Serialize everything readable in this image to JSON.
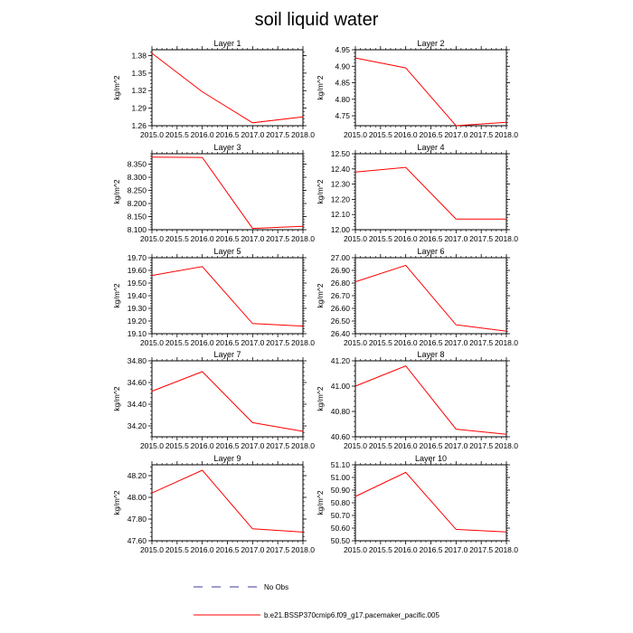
{
  "title": "soil liquid water",
  "legend": {
    "obs_label": "No Obs",
    "obs_color": "#3a3aa0",
    "model_label": "b.e21.BSSP370cmip6.f09_g17.pacemaker_pacific.005",
    "model_color": "#ff0000"
  },
  "chart_data": [
    {
      "type": "line",
      "title": "Layer 1",
      "ylabel": "kg/m^2",
      "x": [
        2015,
        2016,
        2017,
        2018
      ],
      "xlim": [
        2015,
        2018
      ],
      "xticks": [
        "2015.0",
        "2015.5",
        "2016.0",
        "2016.5",
        "2017.0",
        "2017.5",
        "2018.0"
      ],
      "ylim": [
        1.26,
        1.39
      ],
      "yticks": [
        "1.38",
        "1.35",
        "1.32",
        "1.29",
        "1.26"
      ],
      "ytick_values": [
        1.38,
        1.35,
        1.32,
        1.29,
        1.26
      ],
      "series": [
        {
          "name": "b.e21.BSSP370cmip6.f09_g17.pacemaker_pacific.005",
          "values": [
            1.384,
            1.318,
            1.265,
            1.275
          ]
        }
      ]
    },
    {
      "type": "line",
      "title": "Layer 2",
      "ylabel": "kg/m^2",
      "x": [
        2015,
        2016,
        2017,
        2018
      ],
      "xlim": [
        2015,
        2018
      ],
      "xticks": [
        "2015.0",
        "2015.5",
        "2016.0",
        "2016.5",
        "2017.0",
        "2017.5",
        "2018.0"
      ],
      "ylim": [
        4.72,
        4.95
      ],
      "yticks": [
        "4.95",
        "4.90",
        "4.85",
        "4.80",
        "4.75"
      ],
      "ytick_values": [
        4.95,
        4.9,
        4.85,
        4.8,
        4.75
      ],
      "series": [
        {
          "name": "b.e21.BSSP370cmip6.f09_g17.pacemaker_pacific.005",
          "values": [
            4.925,
            4.895,
            4.72,
            4.73
          ]
        }
      ]
    },
    {
      "type": "line",
      "title": "Layer 3",
      "ylabel": "kg/m^2",
      "x": [
        2015,
        2016,
        2017,
        2018
      ],
      "xlim": [
        2015,
        2018
      ],
      "xticks": [
        "2015.0",
        "2015.5",
        "2016.0",
        "2016.5",
        "2017.0",
        "2017.5",
        "2018.0"
      ],
      "ylim": [
        8.1,
        8.39
      ],
      "yticks": [
        "8.350",
        "8.300",
        "8.250",
        "8.200",
        "8.150",
        "8.100"
      ],
      "ytick_values": [
        8.35,
        8.3,
        8.25,
        8.2,
        8.15,
        8.1
      ],
      "series": [
        {
          "name": "b.e21.BSSP370cmip6.f09_g17.pacemaker_pacific.005",
          "values": [
            8.377,
            8.376,
            8.105,
            8.113
          ]
        }
      ]
    },
    {
      "type": "line",
      "title": "Layer 4",
      "ylabel": "kg/m^2",
      "x": [
        2015,
        2016,
        2017,
        2018
      ],
      "xlim": [
        2015,
        2018
      ],
      "xticks": [
        "2015.0",
        "2015.5",
        "2016.0",
        "2016.5",
        "2017.0",
        "2017.5",
        "2018.0"
      ],
      "ylim": [
        12.0,
        12.5
      ],
      "yticks": [
        "12.50",
        "12.40",
        "12.30",
        "12.20",
        "12.10",
        "12.00"
      ],
      "ytick_values": [
        12.5,
        12.4,
        12.3,
        12.2,
        12.1,
        12.0
      ],
      "series": [
        {
          "name": "b.e21.BSSP370cmip6.f09_g17.pacemaker_pacific.005",
          "values": [
            12.38,
            12.41,
            12.07,
            12.07
          ]
        }
      ]
    },
    {
      "type": "line",
      "title": "Layer 5",
      "ylabel": "kg/m^2",
      "x": [
        2015,
        2016,
        2017,
        2018
      ],
      "xlim": [
        2015,
        2018
      ],
      "xticks": [
        "2015.0",
        "2015.5",
        "2016.0",
        "2016.5",
        "2017.0",
        "2017.5",
        "2018.0"
      ],
      "ylim": [
        19.1,
        19.7
      ],
      "yticks": [
        "19.70",
        "19.60",
        "19.50",
        "19.40",
        "19.30",
        "19.20",
        "19.10"
      ],
      "ytick_values": [
        19.7,
        19.6,
        19.5,
        19.4,
        19.3,
        19.2,
        19.1
      ],
      "series": [
        {
          "name": "b.e21.BSSP370cmip6.f09_g17.pacemaker_pacific.005",
          "values": [
            19.56,
            19.63,
            19.18,
            19.16
          ]
        }
      ]
    },
    {
      "type": "line",
      "title": "Layer 6",
      "ylabel": "kg/m^2",
      "x": [
        2015,
        2016,
        2017,
        2018
      ],
      "xlim": [
        2015,
        2018
      ],
      "xticks": [
        "2015.0",
        "2015.5",
        "2016.0",
        "2016.5",
        "2017.0",
        "2017.5",
        "2018.0"
      ],
      "ylim": [
        26.4,
        27.0
      ],
      "yticks": [
        "27.00",
        "26.90",
        "26.80",
        "26.70",
        "26.60",
        "26.50",
        "26.40"
      ],
      "ytick_values": [
        27.0,
        26.9,
        26.8,
        26.7,
        26.6,
        26.5,
        26.4
      ],
      "series": [
        {
          "name": "b.e21.BSSP370cmip6.f09_g17.pacemaker_pacific.005",
          "values": [
            26.81,
            26.94,
            26.47,
            26.42
          ]
        }
      ]
    },
    {
      "type": "line",
      "title": "Layer 7",
      "ylabel": "kg/m^2",
      "x": [
        2015,
        2016,
        2017,
        2018
      ],
      "xlim": [
        2015,
        2018
      ],
      "xticks": [
        "2015.0",
        "2015.5",
        "2016.0",
        "2016.5",
        "2017.0",
        "2017.5",
        "2018.0"
      ],
      "ylim": [
        34.1,
        34.8
      ],
      "yticks": [
        "34.80",
        "34.60",
        "34.40",
        "34.20"
      ],
      "ytick_values": [
        34.8,
        34.6,
        34.4,
        34.2
      ],
      "series": [
        {
          "name": "b.e21.BSSP370cmip6.f09_g17.pacemaker_pacific.005",
          "values": [
            34.52,
            34.7,
            34.23,
            34.15
          ]
        }
      ]
    },
    {
      "type": "line",
      "title": "Layer 8",
      "ylabel": "kg/m^2",
      "x": [
        2015,
        2016,
        2017,
        2018
      ],
      "xlim": [
        2015,
        2018
      ],
      "xticks": [
        "2015.0",
        "2015.5",
        "2016.0",
        "2016.5",
        "2017.0",
        "2017.5",
        "2018.0"
      ],
      "ylim": [
        40.6,
        41.2
      ],
      "yticks": [
        "41.20",
        "41.00",
        "40.80",
        "40.60"
      ],
      "ytick_values": [
        41.2,
        41.0,
        40.8,
        40.6
      ],
      "series": [
        {
          "name": "b.e21.BSSP370cmip6.f09_g17.pacemaker_pacific.005",
          "values": [
            41.0,
            41.16,
            40.66,
            40.62
          ]
        }
      ]
    },
    {
      "type": "line",
      "title": "Layer 9",
      "ylabel": "kg/m^2",
      "x": [
        2015,
        2016,
        2017,
        2018
      ],
      "xlim": [
        2015,
        2018
      ],
      "xticks": [
        "2015.0",
        "2015.5",
        "2016.0",
        "2016.5",
        "2017.0",
        "2017.5",
        "2018.0"
      ],
      "ylim": [
        47.6,
        48.3
      ],
      "yticks": [
        "48.20",
        "48.00",
        "47.80",
        "47.60"
      ],
      "ytick_values": [
        48.2,
        48.0,
        47.8,
        47.6
      ],
      "series": [
        {
          "name": "b.e21.BSSP370cmip6.f09_g17.pacemaker_pacific.005",
          "values": [
            48.04,
            48.25,
            47.71,
            47.68
          ]
        }
      ]
    },
    {
      "type": "line",
      "title": "Layer 10",
      "ylabel": "kg/m^2",
      "x": [
        2015,
        2016,
        2017,
        2018
      ],
      "xlim": [
        2015,
        2018
      ],
      "xticks": [
        "2015.0",
        "2015.5",
        "2016.0",
        "2016.5",
        "2017.0",
        "2017.5",
        "2018.0"
      ],
      "ylim": [
        50.5,
        51.1
      ],
      "yticks": [
        "51.10",
        "51.00",
        "50.90",
        "50.80",
        "50.70",
        "50.60",
        "50.50"
      ],
      "ytick_values": [
        51.1,
        51.0,
        50.9,
        50.8,
        50.7,
        50.6,
        50.5
      ],
      "series": [
        {
          "name": "b.e21.BSSP370cmip6.f09_g17.pacemaker_pacific.005",
          "values": [
            50.85,
            51.04,
            50.59,
            50.57
          ]
        }
      ]
    }
  ]
}
